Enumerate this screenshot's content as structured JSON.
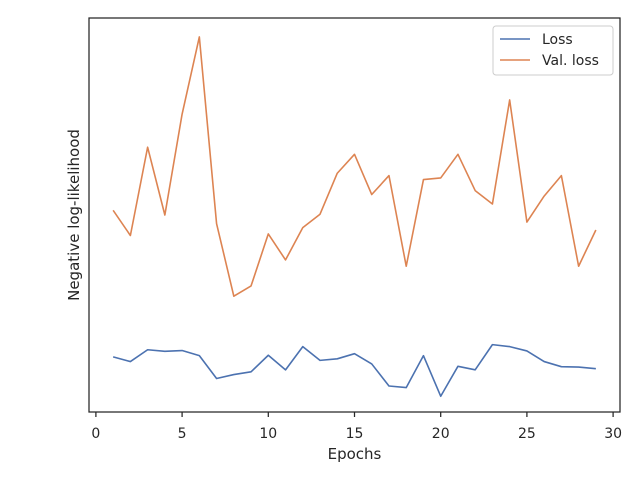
{
  "chart_data": {
    "type": "line",
    "title": "",
    "xlabel": "Epochs",
    "ylabel": "Negative log-likelihood",
    "xlim": [
      -0.4,
      30.4
    ],
    "ylim": [
      0,
      1
    ],
    "y_ticks_labeled": false,
    "x_ticks": [
      0,
      5,
      10,
      15,
      20,
      25,
      30
    ],
    "grid": false,
    "legend_position": "top-right",
    "x": [
      1,
      2,
      3,
      4,
      5,
      6,
      7,
      8,
      9,
      10,
      11,
      12,
      13,
      14,
      15,
      16,
      17,
      18,
      19,
      20,
      21,
      22,
      23,
      24,
      25,
      26,
      27,
      28,
      29
    ],
    "series": [
      {
        "name": "Loss",
        "color": "#4c72b0",
        "values": [
          0.14,
          0.128,
          0.158,
          0.154,
          0.156,
          0.143,
          0.085,
          0.095,
          0.102,
          0.144,
          0.107,
          0.166,
          0.131,
          0.135,
          0.148,
          0.122,
          0.066,
          0.062,
          0.143,
          0.04,
          0.116,
          0.107,
          0.171,
          0.166,
          0.155,
          0.128,
          0.115,
          0.114,
          0.11
        ]
      },
      {
        "name": "Val. loss",
        "color": "#dd8452",
        "values": [
          0.512,
          0.448,
          0.672,
          0.5,
          0.756,
          0.952,
          0.478,
          0.294,
          0.32,
          0.452,
          0.386,
          0.468,
          0.502,
          0.606,
          0.654,
          0.552,
          0.6,
          0.37,
          0.59,
          0.594,
          0.654,
          0.562,
          0.528,
          0.792,
          0.482,
          0.548,
          0.6,
          0.37,
          0.462
        ]
      }
    ]
  }
}
